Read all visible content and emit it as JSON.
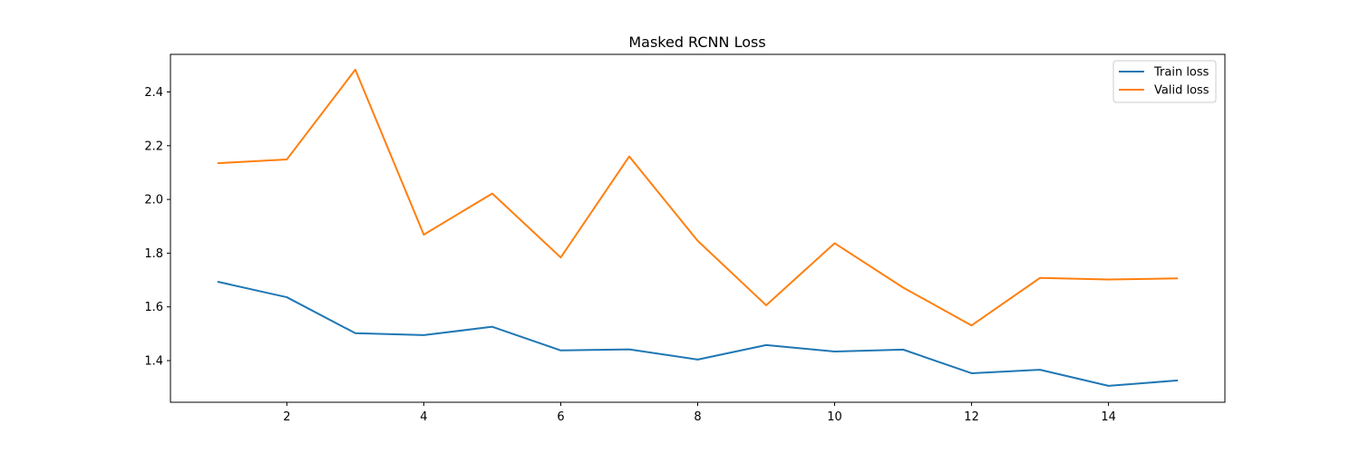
{
  "chart_data": {
    "type": "line",
    "title": "Masked RCNN Loss",
    "xlabel": "",
    "ylabel": "",
    "x": [
      1,
      2,
      3,
      4,
      5,
      6,
      7,
      8,
      9,
      10,
      11,
      12,
      13,
      14,
      15
    ],
    "xlim": [
      0.3,
      15.7
    ],
    "ylim": [
      1.245,
      2.54
    ],
    "xticks": [
      2,
      4,
      6,
      8,
      10,
      12,
      14
    ],
    "yticks": [
      1.4,
      1.6,
      1.8,
      2.0,
      2.2,
      2.4
    ],
    "xtick_labels": [
      "2",
      "4",
      "6",
      "8",
      "10",
      "12",
      "14"
    ],
    "ytick_labels": [
      "1.4",
      "1.6",
      "1.8",
      "2.0",
      "2.2",
      "2.4"
    ],
    "grid": false,
    "legend_position": "top-right",
    "series": [
      {
        "name": "Train loss",
        "color": "#1f77b4",
        "values": [
          1.693,
          1.636,
          1.502,
          1.495,
          1.526,
          1.438,
          1.442,
          1.404,
          1.458,
          1.434,
          1.441,
          1.353,
          1.366,
          1.306,
          1.326
        ]
      },
      {
        "name": "Valid loss",
        "color": "#ff7f0e",
        "values": [
          2.135,
          2.149,
          2.483,
          1.869,
          2.022,
          1.784,
          2.16,
          1.846,
          1.606,
          1.837,
          1.672,
          1.531,
          1.708,
          1.702,
          1.706
        ]
      }
    ]
  }
}
